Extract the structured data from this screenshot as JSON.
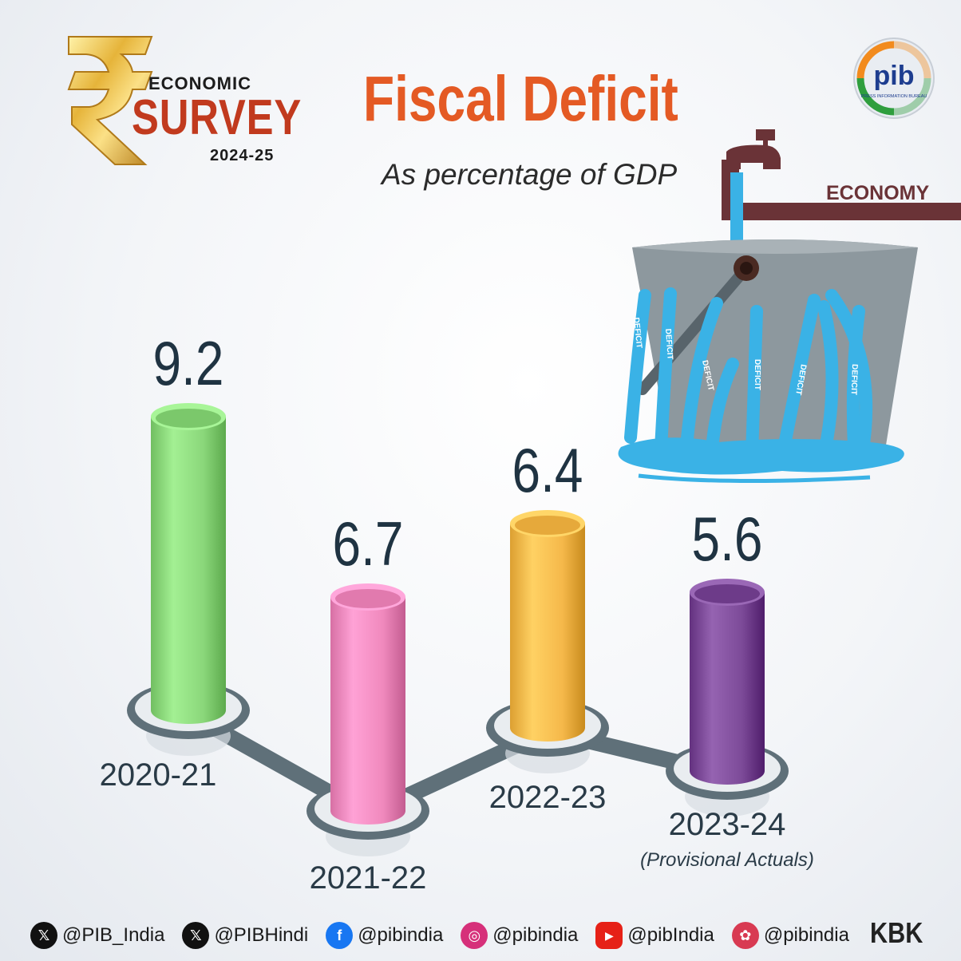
{
  "header": {
    "badge_line1": "ECONOMIC",
    "badge_line2": "SURVEY",
    "badge_year": "2024-25",
    "title": "Fiscal Deficit",
    "subtitle": "As percentage of GDP",
    "pib_logo_text": "pib",
    "pib_logo_caption": "PRESS INFORMATION BUREAU"
  },
  "illustration": {
    "pipe_label": "ECONOMY",
    "stream_word": "DEFICIT"
  },
  "chart_data": {
    "type": "bar",
    "title": "Fiscal Deficit",
    "subtitle": "As percentage of GDP",
    "categories": [
      "2020-21",
      "2021-22",
      "2022-23",
      "2023-24"
    ],
    "values": [
      9.2,
      6.7,
      6.4,
      5.6
    ],
    "value_labels": [
      "9.2",
      "6.7",
      "6.4",
      "5.6"
    ],
    "notes": [
      "",
      "",
      "",
      "(Provisional Actuals)"
    ],
    "colors": [
      "#8ad77a",
      "#f089bd",
      "#f5b84a",
      "#7c4a98"
    ],
    "connector_color": "#5f7079",
    "grid": false,
    "legend": "none"
  },
  "footer": {
    "socials": [
      {
        "icon": "x-icon",
        "handle": "@PIB_India",
        "color": "#111111"
      },
      {
        "icon": "x-icon",
        "handle": "@PIBHindi",
        "color": "#111111"
      },
      {
        "icon": "facebook-icon",
        "handle": "@pibindia",
        "color": "#1877f2"
      },
      {
        "icon": "instagram-icon",
        "handle": "@pibindia",
        "color": "#d6307a"
      },
      {
        "icon": "youtube-icon",
        "handle": "@pibIndia",
        "color": "#e62117"
      },
      {
        "icon": "kooapp-icon",
        "handle": "@pibindia",
        "color": "#d83a52"
      }
    ],
    "credit": "KBK"
  }
}
